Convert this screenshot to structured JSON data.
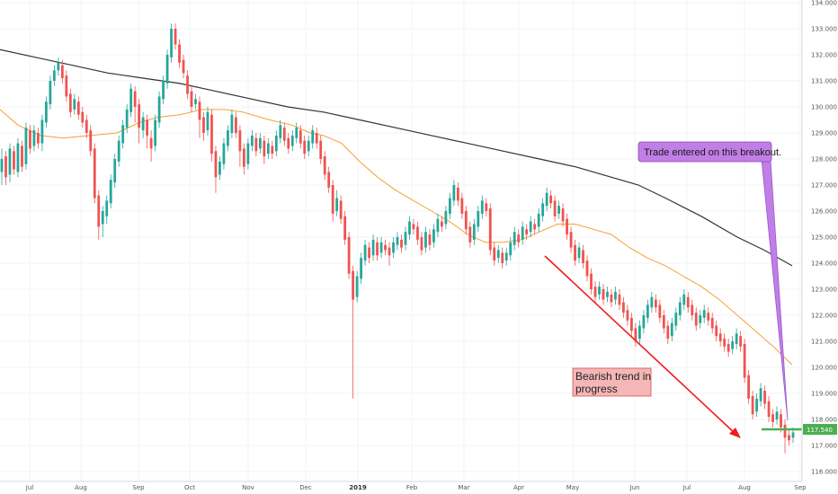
{
  "chart_data": {
    "type": "candlestick",
    "title": "",
    "ylim": [
      115.6,
      134.1
    ],
    "y_ticks": [
      "116.000",
      "117.000",
      "118.000",
      "119.000",
      "120.000",
      "121.000",
      "122.000",
      "123.000",
      "124.000",
      "125.000",
      "126.000",
      "127.000",
      "128.000",
      "129.000",
      "130.000",
      "131.000",
      "132.000",
      "133.000",
      "134.000"
    ],
    "x_ticks": [
      "Jul",
      "Aug",
      "Sep",
      "Oct",
      "Nov",
      "Dec",
      "2019",
      "Feb",
      "Mar",
      "Apr",
      "May",
      "Jun",
      "Jul",
      "Aug",
      "Sep"
    ],
    "last_price": "117.540",
    "ma_fast": {
      "name": "",
      "color": "#f7a035",
      "values": [
        [
          0,
          129.9
        ],
        [
          20,
          129.3
        ],
        [
          45,
          128.9
        ],
        [
          70,
          128.8
        ],
        [
          100,
          128.9
        ],
        [
          130,
          129.0
        ],
        [
          155,
          129.4
        ],
        [
          175,
          129.6
        ],
        [
          200,
          129.7
        ],
        [
          225,
          129.9
        ],
        [
          250,
          129.9
        ],
        [
          270,
          129.8
        ],
        [
          300,
          129.5
        ],
        [
          325,
          129.3
        ],
        [
          345,
          129.0
        ],
        [
          360,
          128.9
        ],
        [
          380,
          128.6
        ],
        [
          400,
          127.9
        ],
        [
          420,
          127.3
        ],
        [
          440,
          126.8
        ],
        [
          460,
          126.4
        ],
        [
          480,
          126.0
        ],
        [
          500,
          125.6
        ],
        [
          520,
          125.1
        ],
        [
          540,
          124.8
        ],
        [
          560,
          124.8
        ],
        [
          580,
          124.9
        ],
        [
          600,
          125.2
        ],
        [
          620,
          125.5
        ],
        [
          640,
          125.5
        ],
        [
          660,
          125.3
        ],
        [
          680,
          125.1
        ],
        [
          700,
          124.6
        ],
        [
          720,
          124.2
        ],
        [
          740,
          123.9
        ],
        [
          760,
          123.5
        ],
        [
          780,
          123.1
        ],
        [
          800,
          122.6
        ],
        [
          820,
          122.0
        ],
        [
          840,
          121.4
        ],
        [
          860,
          120.8
        ],
        [
          881,
          120.1
        ]
      ]
    },
    "ma_slow": {
      "name": "",
      "color": "#333333",
      "values": [
        [
          0,
          132.2
        ],
        [
          40,
          131.9
        ],
        [
          80,
          131.6
        ],
        [
          120,
          131.3
        ],
        [
          160,
          131.1
        ],
        [
          200,
          130.9
        ],
        [
          240,
          130.6
        ],
        [
          280,
          130.3
        ],
        [
          320,
          130.0
        ],
        [
          360,
          129.8
        ],
        [
          400,
          129.5
        ],
        [
          440,
          129.2
        ],
        [
          480,
          128.9
        ],
        [
          520,
          128.6
        ],
        [
          560,
          128.3
        ],
        [
          600,
          128.0
        ],
        [
          640,
          127.7
        ],
        [
          680,
          127.3
        ],
        [
          710,
          127.0
        ],
        [
          740,
          126.5
        ],
        [
          780,
          125.8
        ],
        [
          820,
          125.0
        ],
        [
          850,
          124.5
        ],
        [
          881,
          123.9
        ]
      ]
    },
    "candles": [
      [
        127.5,
        128.0,
        127.0,
        128.4
      ],
      [
        128.1,
        127.3,
        127.0,
        128.3
      ],
      [
        127.4,
        128.4,
        127.1,
        128.6
      ],
      [
        128.3,
        127.6,
        127.4,
        128.5
      ],
      [
        127.5,
        128.6,
        127.3,
        128.8
      ],
      [
        128.5,
        127.7,
        127.5,
        128.7
      ],
      [
        127.8,
        129.2,
        127.6,
        129.4
      ],
      [
        129.1,
        128.4,
        128.2,
        129.3
      ],
      [
        128.5,
        129.1,
        128.3,
        129.3
      ],
      [
        129.0,
        128.6,
        128.4,
        129.2
      ],
      [
        128.6,
        129.5,
        128.3,
        129.7
      ],
      [
        129.4,
        130.2,
        129.2,
        130.4
      ],
      [
        130.1,
        131.0,
        129.9,
        131.2
      ],
      [
        131.0,
        131.4,
        130.8,
        131.6
      ],
      [
        131.4,
        131.7,
        131.2,
        131.9
      ],
      [
        131.6,
        131.1,
        130.9,
        131.8
      ],
      [
        131.2,
        130.4,
        130.2,
        131.4
      ],
      [
        130.5,
        129.8,
        129.6,
        130.7
      ],
      [
        129.9,
        130.3,
        129.7,
        130.5
      ],
      [
        130.2,
        129.7,
        129.5,
        130.4
      ],
      [
        129.8,
        129.4,
        129.2,
        130.0
      ],
      [
        129.5,
        129.0,
        128.8,
        129.7
      ],
      [
        129.1,
        128.3,
        128.1,
        129.3
      ],
      [
        128.4,
        126.5,
        126.3,
        128.6
      ],
      [
        126.6,
        125.4,
        124.9,
        126.8
      ],
      [
        125.5,
        126.0,
        125.0,
        126.2
      ],
      [
        125.8,
        126.4,
        125.5,
        126.6
      ],
      [
        126.3,
        127.2,
        126.1,
        127.4
      ],
      [
        127.1,
        128.0,
        126.9,
        128.2
      ],
      [
        127.9,
        128.7,
        127.7,
        128.9
      ],
      [
        128.6,
        129.3,
        128.4,
        129.5
      ],
      [
        129.2,
        129.9,
        129.0,
        130.1
      ],
      [
        129.8,
        130.7,
        129.6,
        130.9
      ],
      [
        130.6,
        130.0,
        129.4,
        130.8
      ],
      [
        130.1,
        129.2,
        128.6,
        130.3
      ],
      [
        129.1,
        129.6,
        128.8,
        129.8
      ],
      [
        129.5,
        128.9,
        128.4,
        129.7
      ],
      [
        128.8,
        128.4,
        127.9,
        129.1
      ],
      [
        128.5,
        129.5,
        128.3,
        129.7
      ],
      [
        129.4,
        130.4,
        129.2,
        130.6
      ],
      [
        130.3,
        131.0,
        130.1,
        131.2
      ],
      [
        130.9,
        132.0,
        130.7,
        132.2
      ],
      [
        131.9,
        133.0,
        131.7,
        133.2
      ],
      [
        133.0,
        132.4,
        132.2,
        133.2
      ],
      [
        132.4,
        131.7,
        131.5,
        132.6
      ],
      [
        131.8,
        131.3,
        131.1,
        132.0
      ],
      [
        131.2,
        130.5,
        130.3,
        131.4
      ],
      [
        130.6,
        130.0,
        129.8,
        130.8
      ],
      [
        130.1,
        130.3,
        129.9,
        130.5
      ],
      [
        130.2,
        129.5,
        128.8,
        130.4
      ],
      [
        129.6,
        129.0,
        128.7,
        129.8
      ],
      [
        129.1,
        129.8,
        128.9,
        130.0
      ],
      [
        129.7,
        128.2,
        127.9,
        129.9
      ],
      [
        128.3,
        127.3,
        126.7,
        128.5
      ],
      [
        127.4,
        127.9,
        127.2,
        128.1
      ],
      [
        127.8,
        128.6,
        127.6,
        128.8
      ],
      [
        128.5,
        129.1,
        128.3,
        129.3
      ],
      [
        129.0,
        129.7,
        128.8,
        129.9
      ],
      [
        129.6,
        129.0,
        128.8,
        129.8
      ],
      [
        129.1,
        128.3,
        127.7,
        129.3
      ],
      [
        128.4,
        127.7,
        127.4,
        128.6
      ],
      [
        127.8,
        128.6,
        127.6,
        128.8
      ],
      [
        128.5,
        128.9,
        128.3,
        129.1
      ],
      [
        128.8,
        128.3,
        128.1,
        129.0
      ],
      [
        128.4,
        128.8,
        128.2,
        129.0
      ],
      [
        128.7,
        128.1,
        127.8,
        128.9
      ],
      [
        128.2,
        128.6,
        128.0,
        128.8
      ],
      [
        128.5,
        128.2,
        128.0,
        128.7
      ],
      [
        128.3,
        128.9,
        128.1,
        129.1
      ],
      [
        128.8,
        129.3,
        128.6,
        129.5
      ],
      [
        129.2,
        128.7,
        128.5,
        129.4
      ],
      [
        128.8,
        128.4,
        128.2,
        129.0
      ],
      [
        128.5,
        128.9,
        128.3,
        129.1
      ],
      [
        128.8,
        129.2,
        128.6,
        129.4
      ],
      [
        129.1,
        128.6,
        128.4,
        129.3
      ],
      [
        128.7,
        128.2,
        128.0,
        128.9
      ],
      [
        128.3,
        128.7,
        128.1,
        128.9
      ],
      [
        128.6,
        129.1,
        128.4,
        129.3
      ],
      [
        129.0,
        128.6,
        128.4,
        129.2
      ],
      [
        128.7,
        128.0,
        127.8,
        128.9
      ],
      [
        128.1,
        127.4,
        127.2,
        128.3
      ],
      [
        127.5,
        126.9,
        126.7,
        127.7
      ],
      [
        127.0,
        125.9,
        125.6,
        127.2
      ],
      [
        126.0,
        126.5,
        125.8,
        126.8
      ],
      [
        126.4,
        125.7,
        125.5,
        126.6
      ],
      [
        125.8,
        124.9,
        124.7,
        126.0
      ],
      [
        125.0,
        123.6,
        123.4,
        125.2
      ],
      [
        123.7,
        122.6,
        118.8,
        123.9
      ],
      [
        122.7,
        123.5,
        122.5,
        123.7
      ],
      [
        123.4,
        124.2,
        123.2,
        124.4
      ],
      [
        124.1,
        124.7,
        123.9,
        124.9
      ],
      [
        124.6,
        124.2,
        124.0,
        124.8
      ],
      [
        124.3,
        124.9,
        124.1,
        125.1
      ],
      [
        124.8,
        124.3,
        124.1,
        125.0
      ],
      [
        124.4,
        124.8,
        124.2,
        125.0
      ],
      [
        124.7,
        124.5,
        124.3,
        124.9
      ],
      [
        124.6,
        124.3,
        123.9,
        124.8
      ],
      [
        124.4,
        124.8,
        124.2,
        125.0
      ],
      [
        124.7,
        125.0,
        124.5,
        125.2
      ],
      [
        124.9,
        124.6,
        124.4,
        125.1
      ],
      [
        124.7,
        125.2,
        124.5,
        125.4
      ],
      [
        125.1,
        125.6,
        124.9,
        125.8
      ],
      [
        125.5,
        125.3,
        125.1,
        125.7
      ],
      [
        125.4,
        124.9,
        124.7,
        125.6
      ],
      [
        125.0,
        124.5,
        124.3,
        125.2
      ],
      [
        124.6,
        125.2,
        124.4,
        125.4
      ],
      [
        125.1,
        124.7,
        124.5,
        125.3
      ],
      [
        124.8,
        125.3,
        124.6,
        125.5
      ],
      [
        125.2,
        125.7,
        125.0,
        125.9
      ],
      [
        125.6,
        125.4,
        125.2,
        125.8
      ],
      [
        125.5,
        126.0,
        125.3,
        126.2
      ],
      [
        125.9,
        126.5,
        125.7,
        126.7
      ],
      [
        126.4,
        127.0,
        126.2,
        127.2
      ],
      [
        126.9,
        126.4,
        126.2,
        127.1
      ],
      [
        126.5,
        125.9,
        125.7,
        126.7
      ],
      [
        126.0,
        125.3,
        125.1,
        126.2
      ],
      [
        125.4,
        124.8,
        124.6,
        125.6
      ],
      [
        124.9,
        125.5,
        124.7,
        125.7
      ],
      [
        125.4,
        126.0,
        125.2,
        126.2
      ],
      [
        125.9,
        126.4,
        125.7,
        126.6
      ],
      [
        126.3,
        126.0,
        125.8,
        126.5
      ],
      [
        126.1,
        124.5,
        124.3,
        126.3
      ],
      [
        124.6,
        124.1,
        123.9,
        124.8
      ],
      [
        124.2,
        124.5,
        124.0,
        124.7
      ],
      [
        124.4,
        124.0,
        123.8,
        124.6
      ],
      [
        124.1,
        124.4,
        123.9,
        124.6
      ],
      [
        124.3,
        124.8,
        124.1,
        125.0
      ],
      [
        124.7,
        125.2,
        124.5,
        125.4
      ],
      [
        125.1,
        124.8,
        124.6,
        125.3
      ],
      [
        124.9,
        125.4,
        124.7,
        125.6
      ],
      [
        125.3,
        125.1,
        124.9,
        125.5
      ],
      [
        125.2,
        125.6,
        125.0,
        125.8
      ],
      [
        125.5,
        125.3,
        125.1,
        125.7
      ],
      [
        125.4,
        125.9,
        125.2,
        126.1
      ],
      [
        125.8,
        126.3,
        125.6,
        126.5
      ],
      [
        126.2,
        126.7,
        126.0,
        126.9
      ],
      [
        126.6,
        126.3,
        126.1,
        126.8
      ],
      [
        126.4,
        125.8,
        125.6,
        126.6
      ],
      [
        125.9,
        126.2,
        125.7,
        126.4
      ],
      [
        126.1,
        125.6,
        125.4,
        126.3
      ],
      [
        125.7,
        125.1,
        124.9,
        125.9
      ],
      [
        125.2,
        124.6,
        124.4,
        125.4
      ],
      [
        124.7,
        124.1,
        123.9,
        124.9
      ],
      [
        124.2,
        124.6,
        124.0,
        124.8
      ],
      [
        124.5,
        124.0,
        123.8,
        124.7
      ],
      [
        124.1,
        123.5,
        123.3,
        124.3
      ],
      [
        123.6,
        123.0,
        122.8,
        123.8
      ],
      [
        123.1,
        122.7,
        122.5,
        123.3
      ],
      [
        122.8,
        123.1,
        122.6,
        123.3
      ],
      [
        123.0,
        122.6,
        122.4,
        123.2
      ],
      [
        122.7,
        122.9,
        122.5,
        123.1
      ],
      [
        122.8,
        122.5,
        122.3,
        123.0
      ],
      [
        122.6,
        122.9,
        122.4,
        123.1
      ],
      [
        122.8,
        122.4,
        122.2,
        123.0
      ],
      [
        122.5,
        122.1,
        121.9,
        122.7
      ],
      [
        122.2,
        121.8,
        121.6,
        122.4
      ],
      [
        121.9,
        121.4,
        121.2,
        122.1
      ],
      [
        121.5,
        121.0,
        120.8,
        121.7
      ],
      [
        121.1,
        121.6,
        120.9,
        121.8
      ],
      [
        121.5,
        122.0,
        121.3,
        122.2
      ],
      [
        121.9,
        122.4,
        121.7,
        122.6
      ],
      [
        122.3,
        122.7,
        122.1,
        122.9
      ],
      [
        122.6,
        122.3,
        122.1,
        122.8
      ],
      [
        122.4,
        121.9,
        121.7,
        122.6
      ],
      [
        122.0,
        121.5,
        121.3,
        122.2
      ],
      [
        121.6,
        121.1,
        120.9,
        121.8
      ],
      [
        121.2,
        121.7,
        121.0,
        121.9
      ],
      [
        121.6,
        122.1,
        121.4,
        122.3
      ],
      [
        122.0,
        122.5,
        121.8,
        122.7
      ],
      [
        122.4,
        122.8,
        122.2,
        123.0
      ],
      [
        122.7,
        122.3,
        122.1,
        122.9
      ],
      [
        122.4,
        122.0,
        121.8,
        122.6
      ],
      [
        122.1,
        121.6,
        121.4,
        122.3
      ],
      [
        121.7,
        122.0,
        121.5,
        122.2
      ],
      [
        121.9,
        122.2,
        121.7,
        122.4
      ],
      [
        122.1,
        121.8,
        121.6,
        122.3
      ],
      [
        121.9,
        121.5,
        121.3,
        122.1
      ],
      [
        121.6,
        121.2,
        121.0,
        121.8
      ],
      [
        121.3,
        121.0,
        120.8,
        121.5
      ],
      [
        121.1,
        120.8,
        120.6,
        121.3
      ],
      [
        120.9,
        120.6,
        120.4,
        121.1
      ],
      [
        120.7,
        121.0,
        120.5,
        121.2
      ],
      [
        120.9,
        121.3,
        120.7,
        121.5
      ],
      [
        121.2,
        120.8,
        120.6,
        121.4
      ],
      [
        120.9,
        119.6,
        119.4,
        121.1
      ],
      [
        119.7,
        118.8,
        118.6,
        119.9
      ],
      [
        118.9,
        118.2,
        118.0,
        119.1
      ],
      [
        118.3,
        118.8,
        118.1,
        119.0
      ],
      [
        118.7,
        119.2,
        118.5,
        119.4
      ],
      [
        119.1,
        118.6,
        118.4,
        119.3
      ],
      [
        118.7,
        118.1,
        117.9,
        118.9
      ],
      [
        118.2,
        117.9,
        117.7,
        118.4
      ],
      [
        118.0,
        118.3,
        117.8,
        118.5
      ],
      [
        118.2,
        117.7,
        117.5,
        118.4
      ],
      [
        117.8,
        117.3,
        116.7,
        118.0
      ],
      [
        117.4,
        117.2,
        117.0,
        117.6
      ],
      [
        117.3,
        117.5,
        117.1,
        117.7
      ]
    ]
  },
  "annotations": {
    "bearish_note": [
      "Bearish trend in",
      "progress"
    ],
    "trade_note": "Trade entered on this breakout."
  },
  "colors": {
    "up": "#26a69a",
    "down": "#ef5350",
    "price_line": "#4caf50",
    "bearish_box_fill": "#f4b6b6",
    "bearish_box_stroke": "#d9534f",
    "trade_box_fill": "#c07ee6",
    "trade_box_stroke": "#8e44ad",
    "trend_arrow": "#f21c1c",
    "callout_line": "#9b59d0",
    "grid": "#f0f3f7"
  }
}
